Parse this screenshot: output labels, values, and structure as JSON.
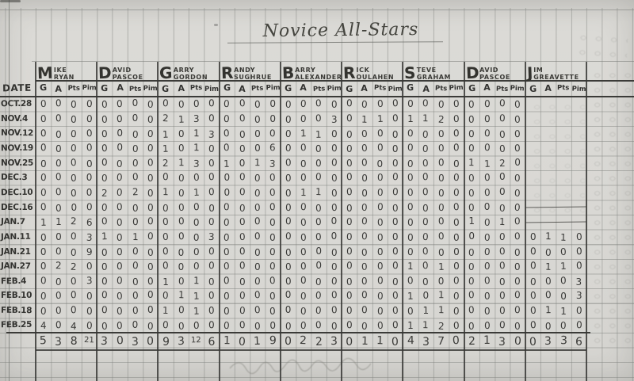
{
  "title": "Novice All-Stars",
  "date_header": "DATE",
  "stat_headers": [
    "G",
    "A",
    "Pts",
    "Pim"
  ],
  "players": [
    {
      "initial": "M",
      "first_rest": "IKE",
      "last": "RYAN"
    },
    {
      "initial": "D",
      "first_rest": "AVID",
      "last": "PASCOE"
    },
    {
      "initial": "G",
      "first_rest": "ARRY",
      "last": "GORDON"
    },
    {
      "initial": "R",
      "first_rest": "ANDY",
      "last": "SUGHRUE"
    },
    {
      "initial": "B",
      "first_rest": "ARRY",
      "last": "ALEXANDER"
    },
    {
      "initial": "R",
      "first_rest": "ICK",
      "last": "OULAHEN"
    },
    {
      "initial": "S",
      "first_rest": "TEVE",
      "last": "GRAHAM"
    },
    {
      "initial": "D",
      "first_rest": "AVID",
      "last": "PASCOE"
    },
    {
      "initial": "J",
      "first_rest": "IM",
      "last": "GREAVETTE"
    }
  ],
  "rows": [
    {
      "date": "OCT.28",
      "cells": [
        [
          0,
          0,
          0,
          0
        ],
        [
          0,
          0,
          0,
          0
        ],
        [
          0,
          0,
          0,
          0
        ],
        [
          0,
          0,
          0,
          0
        ],
        [
          0,
          0,
          0,
          0
        ],
        [
          0,
          0,
          0,
          0
        ],
        [
          0,
          0,
          0,
          0
        ],
        [
          0,
          0,
          0,
          0
        ],
        null
      ]
    },
    {
      "date": "NOV.4",
      "cells": [
        [
          0,
          0,
          0,
          0
        ],
        [
          0,
          0,
          0,
          0
        ],
        [
          2,
          1,
          3,
          0
        ],
        [
          0,
          0,
          0,
          0
        ],
        [
          0,
          0,
          0,
          3
        ],
        [
          0,
          1,
          1,
          0
        ],
        [
          1,
          1,
          2,
          0
        ],
        [
          0,
          0,
          0,
          0
        ],
        null
      ]
    },
    {
      "date": "NOV.12",
      "cells": [
        [
          0,
          0,
          0,
          0
        ],
        [
          0,
          0,
          0,
          0
        ],
        [
          1,
          0,
          1,
          3
        ],
        [
          0,
          0,
          0,
          0
        ],
        [
          0,
          1,
          1,
          0
        ],
        [
          0,
          0,
          0,
          0
        ],
        [
          0,
          0,
          0,
          0
        ],
        [
          0,
          0,
          0,
          0
        ],
        null
      ]
    },
    {
      "date": "NOV.19",
      "cells": [
        [
          0,
          0,
          0,
          0
        ],
        [
          0,
          0,
          0,
          0
        ],
        [
          1,
          0,
          1,
          0
        ],
        [
          0,
          0,
          0,
          6
        ],
        [
          0,
          0,
          0,
          0
        ],
        [
          0,
          0,
          0,
          0
        ],
        [
          0,
          0,
          0,
          0
        ],
        [
          0,
          0,
          0,
          0
        ],
        null
      ]
    },
    {
      "date": "NOV.25",
      "cells": [
        [
          0,
          0,
          0,
          0
        ],
        [
          0,
          0,
          0,
          0
        ],
        [
          2,
          1,
          3,
          0
        ],
        [
          1,
          0,
          1,
          3
        ],
        [
          0,
          0,
          0,
          0
        ],
        [
          0,
          0,
          0,
          0
        ],
        [
          0,
          0,
          0,
          0
        ],
        [
          1,
          1,
          2,
          0
        ],
        null
      ]
    },
    {
      "date": "DEC.3",
      "cells": [
        [
          0,
          0,
          0,
          0
        ],
        [
          0,
          0,
          0,
          0
        ],
        [
          0,
          0,
          0,
          0
        ],
        [
          0,
          0,
          0,
          0
        ],
        [
          0,
          0,
          0,
          0
        ],
        [
          0,
          0,
          0,
          0
        ],
        [
          0,
          0,
          0,
          0
        ],
        [
          0,
          0,
          0,
          0
        ],
        null
      ]
    },
    {
      "date": "DEC.10",
      "cells": [
        [
          0,
          0,
          0,
          0
        ],
        [
          2,
          0,
          2,
          0
        ],
        [
          1,
          0,
          1,
          0
        ],
        [
          0,
          0,
          0,
          0
        ],
        [
          0,
          1,
          1,
          0
        ],
        [
          0,
          0,
          0,
          0
        ],
        [
          0,
          0,
          0,
          0
        ],
        [
          0,
          0,
          0,
          0
        ],
        null
      ]
    },
    {
      "date": "DEC.16",
      "cells": [
        [
          0,
          0,
          0,
          0
        ],
        [
          0,
          0,
          0,
          0
        ],
        [
          0,
          0,
          0,
          0
        ],
        [
          0,
          0,
          0,
          0
        ],
        [
          0,
          0,
          0,
          0
        ],
        [
          0,
          0,
          0,
          0
        ],
        [
          0,
          0,
          0,
          0
        ],
        [
          0,
          0,
          0,
          0
        ],
        "line"
      ]
    },
    {
      "date": "JAN.7",
      "cells": [
        [
          1,
          1,
          2,
          6
        ],
        [
          0,
          0,
          0,
          0
        ],
        [
          0,
          0,
          0,
          0
        ],
        [
          0,
          0,
          0,
          0
        ],
        [
          0,
          0,
          0,
          0
        ],
        [
          0,
          0,
          0,
          0
        ],
        [
          0,
          0,
          0,
          0
        ],
        [
          1,
          0,
          1,
          0
        ],
        "line"
      ]
    },
    {
      "date": "JAN.11",
      "cells": [
        [
          0,
          0,
          0,
          3
        ],
        [
          1,
          0,
          1,
          0
        ],
        [
          0,
          0,
          0,
          3
        ],
        [
          0,
          0,
          0,
          0
        ],
        [
          0,
          0,
          0,
          0
        ],
        [
          0,
          0,
          0,
          0
        ],
        [
          0,
          0,
          0,
          0
        ],
        [
          0,
          0,
          0,
          0
        ],
        [
          0,
          1,
          1,
          0
        ]
      ]
    },
    {
      "date": "JAN.21",
      "cells": [
        [
          0,
          0,
          0,
          9
        ],
        [
          0,
          0,
          0,
          0
        ],
        [
          0,
          0,
          0,
          0
        ],
        [
          0,
          0,
          0,
          0
        ],
        [
          0,
          0,
          0,
          0
        ],
        [
          0,
          0,
          0,
          0
        ],
        [
          0,
          0,
          0,
          0
        ],
        [
          0,
          0,
          0,
          0
        ],
        [
          0,
          0,
          0,
          0
        ]
      ]
    },
    {
      "date": "JAN.27",
      "cells": [
        [
          0,
          2,
          2,
          0
        ],
        [
          0,
          0,
          0,
          0
        ],
        [
          0,
          0,
          0,
          0
        ],
        [
          0,
          0,
          0,
          0
        ],
        [
          0,
          0,
          0,
          0
        ],
        [
          0,
          0,
          0,
          0
        ],
        [
          1,
          0,
          1,
          0
        ],
        [
          0,
          0,
          0,
          0
        ],
        [
          0,
          1,
          1,
          0
        ]
      ]
    },
    {
      "date": "FEB.4",
      "cells": [
        [
          0,
          0,
          0,
          3
        ],
        [
          0,
          0,
          0,
          0
        ],
        [
          1,
          0,
          1,
          0
        ],
        [
          0,
          0,
          0,
          0
        ],
        [
          0,
          0,
          0,
          0
        ],
        [
          0,
          0,
          0,
          0
        ],
        [
          0,
          0,
          0,
          0
        ],
        [
          0,
          0,
          0,
          0
        ],
        [
          0,
          0,
          0,
          3
        ]
      ]
    },
    {
      "date": "FEB.10",
      "cells": [
        [
          0,
          0,
          0,
          0
        ],
        [
          0,
          0,
          0,
          0
        ],
        [
          0,
          1,
          1,
          0
        ],
        [
          0,
          0,
          0,
          0
        ],
        [
          0,
          0,
          0,
          0
        ],
        [
          0,
          0,
          0,
          0
        ],
        [
          1,
          0,
          1,
          0
        ],
        [
          0,
          0,
          0,
          0
        ],
        [
          0,
          0,
          0,
          3
        ]
      ]
    },
    {
      "date": "FEB.18",
      "cells": [
        [
          0,
          0,
          0,
          0
        ],
        [
          0,
          0,
          0,
          0
        ],
        [
          1,
          0,
          1,
          0
        ],
        [
          0,
          0,
          0,
          0
        ],
        [
          0,
          0,
          0,
          0
        ],
        [
          0,
          0,
          0,
          0
        ],
        [
          0,
          1,
          1,
          0
        ],
        [
          0,
          0,
          0,
          0
        ],
        [
          0,
          1,
          1,
          0
        ]
      ]
    },
    {
      "date": "FEB.25",
      "cells": [
        [
          4,
          0,
          4,
          0
        ],
        [
          0,
          0,
          0,
          0
        ],
        [
          0,
          0,
          0,
          0
        ],
        [
          0,
          0,
          0,
          0
        ],
        [
          0,
          0,
          0,
          0
        ],
        [
          0,
          0,
          0,
          0
        ],
        [
          1,
          1,
          2,
          0
        ],
        [
          0,
          0,
          0,
          0
        ],
        [
          0,
          0,
          0,
          0
        ]
      ]
    }
  ],
  "totals": [
    [
      5,
      3,
      8,
      21
    ],
    [
      3,
      0,
      3,
      0
    ],
    [
      9,
      3,
      12,
      6
    ],
    [
      1,
      0,
      1,
      9
    ],
    [
      0,
      2,
      2,
      3
    ],
    [
      0,
      1,
      1,
      0
    ],
    [
      4,
      3,
      7,
      0
    ],
    [
      2,
      1,
      3,
      0
    ],
    [
      0,
      3,
      3,
      6
    ]
  ],
  "colors": {
    "pen": "#3b3b38",
    "pencil_digit": "#2d2d2b",
    "paper": "#d9d8d4",
    "grid": "#8a8c88"
  }
}
